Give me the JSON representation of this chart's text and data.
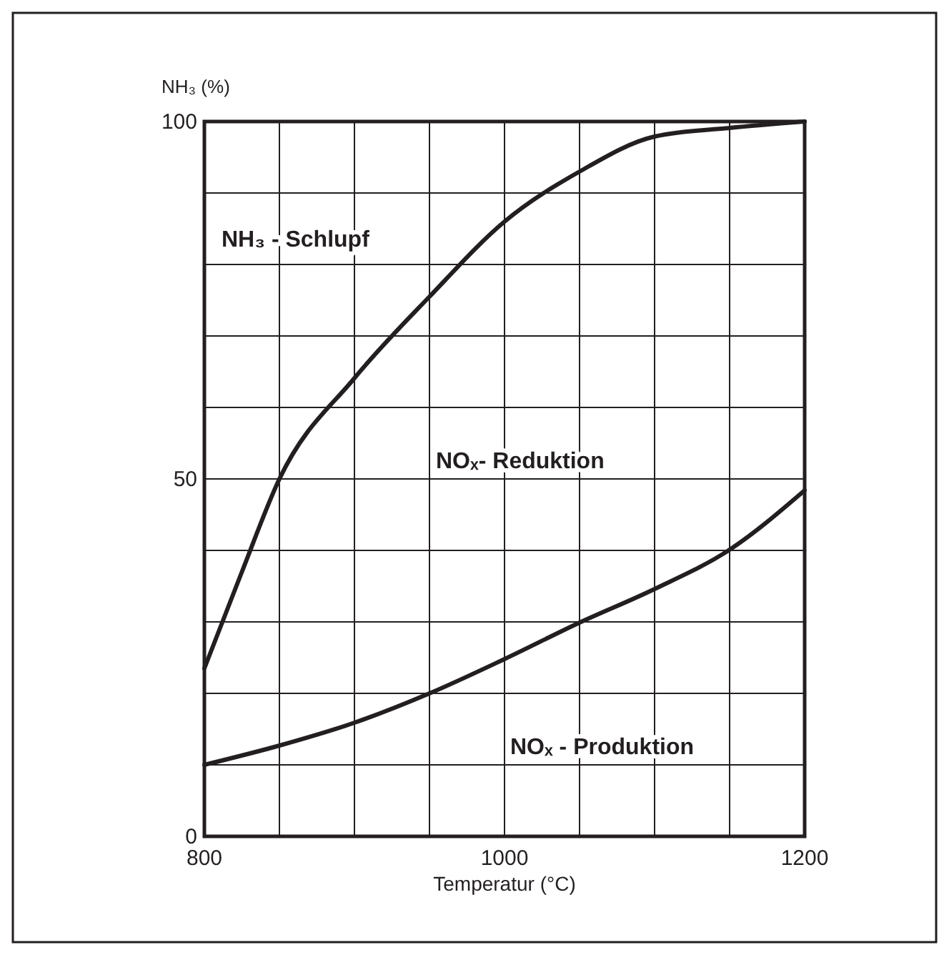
{
  "chart_data": {
    "type": "line",
    "xlabel": "Temperatur (°C)",
    "ylabel": "NH₃ (%)",
    "x": [
      800,
      825,
      850,
      900,
      950,
      1000,
      1050,
      1100,
      1150,
      1200
    ],
    "series": [
      {
        "color": "#231f20",
        "values": [
          23.5,
          37,
          50,
          64.1,
          75.5,
          86,
          93,
          97.9,
          99.1,
          100
        ]
      },
      {
        "color": "#231f20",
        "x": [
          800,
          850,
          900,
          950,
          1000,
          1050,
          1100,
          1150,
          1200
        ],
        "values": [
          10,
          12.7,
          15.9,
          20,
          24.8,
          29.9,
          34.6,
          40.1,
          48.4
        ]
      }
    ],
    "xlim": [
      800,
      1200
    ],
    "xticks": [
      800,
      {
        "value": 850,
        "label": null
      },
      {
        "value": 900,
        "label": null
      },
      {
        "value": 950,
        "label": null
      },
      1000,
      {
        "value": 1050,
        "label": null
      },
      {
        "value": 1100,
        "label": null
      },
      {
        "value": 1150,
        "label": null
      },
      1200
    ],
    "ylim": [
      0,
      100
    ],
    "yticks": [
      0,
      {
        "value": 10,
        "label": null
      },
      {
        "value": 20,
        "label": null
      },
      {
        "value": 30,
        "label": null
      },
      {
        "value": 40,
        "label": null
      },
      50,
      {
        "value": 60,
        "label": null
      },
      {
        "value": 70,
        "label": null
      },
      {
        "value": 80,
        "label": null
      },
      {
        "value": 90,
        "label": null
      },
      100
    ],
    "grid": true,
    "marker": "none",
    "line_style": "solid",
    "annotations": [
      "NH₃ - Schlupf",
      "NOₓ- Reduktion",
      "NOₓ - Produktion"
    ]
  }
}
